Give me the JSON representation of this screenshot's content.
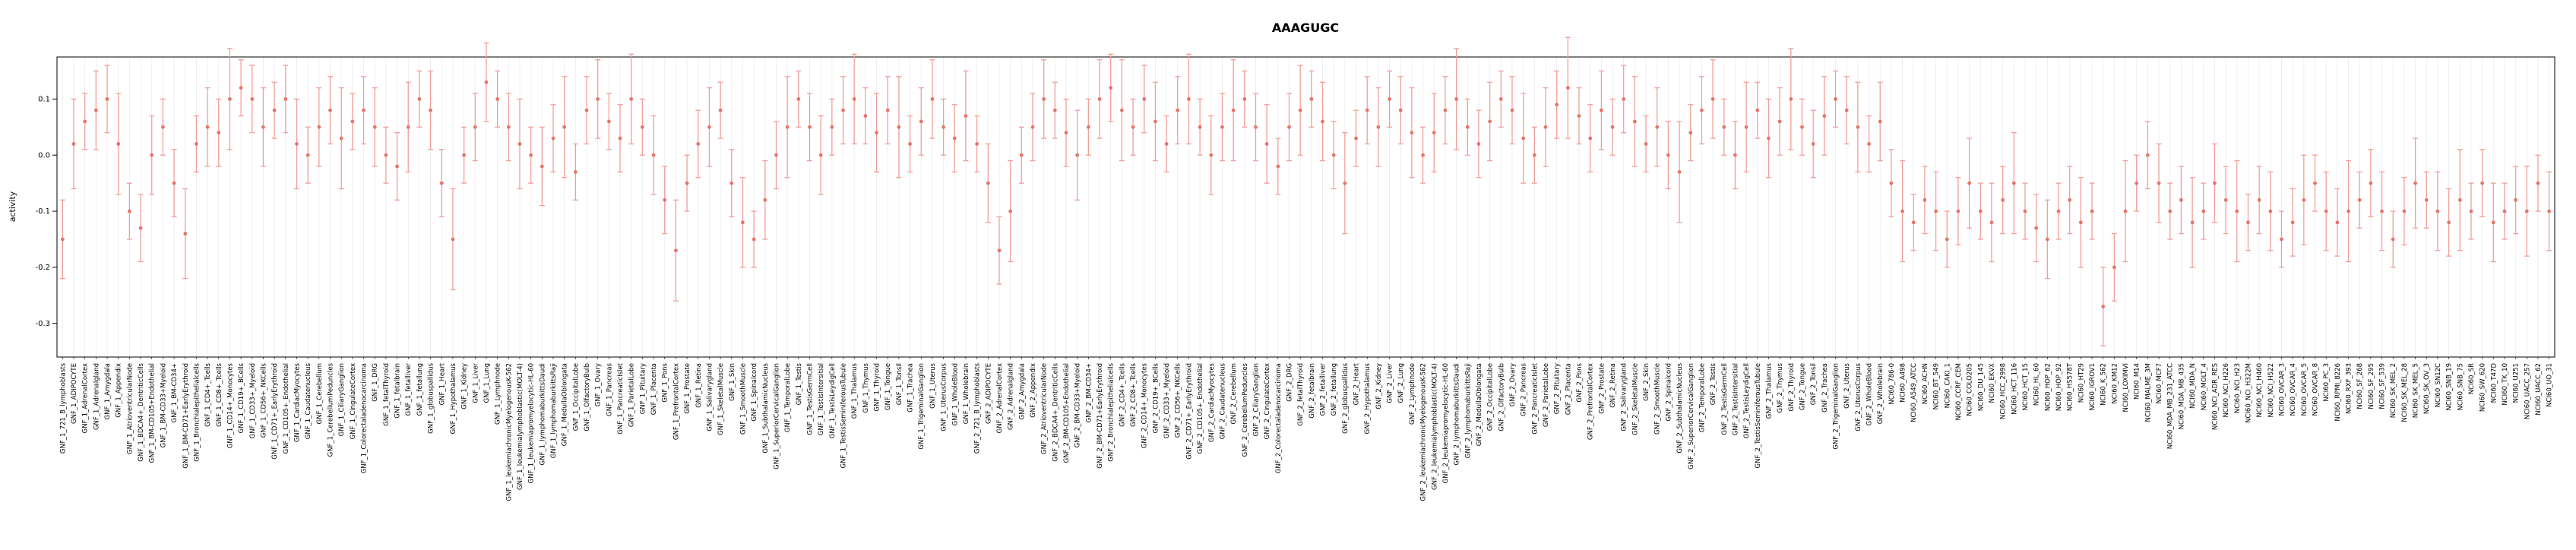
{
  "chart_data": {
    "type": "scatter",
    "title": "AAAGUGC",
    "xlabel": "",
    "ylabel": "activity",
    "ylim": [
      -0.36,
      0.175
    ],
    "yticks": [
      0.1,
      0.0,
      -0.1,
      -0.2,
      -0.3
    ],
    "ytick_labels": [
      "0.1",
      "0.0",
      "-0.1",
      "-0.2",
      "-0.3"
    ],
    "grid": "vertical-only",
    "legend": "none",
    "error_bars": true,
    "point_color": "#e4756a",
    "error_color": "#f09e97",
    "grid_color": "#ebebeb",
    "box_color": "#000000",
    "groups": [
      {
        "prefix": "GNF_1_",
        "source": "tissue_names"
      },
      {
        "prefix": "GNF_2_",
        "source": "tissue_names"
      },
      {
        "prefix": "NCI60_",
        "source": "cell_line_names"
      }
    ],
    "tissue_names": [
      "721_B_lymphoblasts",
      "ADIPOCYTE",
      "AdrenalCortex",
      "Adrenalgland",
      "Amygdala",
      "Appendix",
      "AtrioventricularNode",
      "BDCA4+_DentriticCells",
      "BM-CD105+Endothelial",
      "BM-CD33+Myeloid",
      "BM-CD34+",
      "BM-CD71+EarlyErythroid",
      "Bronchialepithelialcells",
      "CD4+_Tcells",
      "CD8+_Tcells",
      "CD14+_Monocytes",
      "CD19+_BCells",
      "CD33+_Myeloid",
      "CD56+_NKCells",
      "CD71+_EarlyErythroid",
      "CD105+_Endothelial",
      "CardiacMyocytes",
      "Caudatenucleus",
      "Cerebellum",
      "CerebellumPeduncles",
      "CiliaryGanglion",
      "CingulateCortex",
      "Colorectaladenocarcinoma",
      "DRG",
      "fetalThyroid",
      "fetalbrain",
      "fetalliver",
      "fetallung",
      "globuspallidus",
      "Heart",
      "Hypothalamus",
      "Kidney",
      "Liver",
      "Lung",
      "Lymphnode",
      "leukemiachronicMyelogenousK-562",
      "leukemialymphoblastic(MOLT-4)",
      "leukemiapromyelocytic-HL-60",
      "lymphomaburkittsDaudi",
      "lymphomaburkittsRaji",
      "MedullaOblongata",
      "OccipitalLobe",
      "OlfactoryBulb",
      "Ovary",
      "Pancreas",
      "PancreaticIslet",
      "ParietalLobe",
      "Pituitary",
      "Placenta",
      "Pons",
      "PrefrontalCortex",
      "Prostate",
      "Retina",
      "Salivarygland",
      "SkeletalMuscle",
      "Skin",
      "SmoothMuscle",
      "Spinalcord",
      "SubthalamicNucleus",
      "SuperiorCervicalGanglion",
      "TemporalLobe",
      "Testis",
      "TestisGermCell",
      "TestisIntersitial",
      "TestisLeydigCell",
      "TestisSeminiferousTubule",
      "Thalamus",
      "Thymus",
      "Thyroid",
      "Tongue",
      "Tonsil",
      "Trachea",
      "TrigeminalGanglion",
      "Uterus",
      "UterusCorpus",
      "WholeBlood",
      "Wholebrain"
    ],
    "cell_line_names": [
      "786-0",
      "A498",
      "A549_ATCC",
      "ACHN",
      "BT_549",
      "CAKI_1",
      "CCRF_CEM",
      "COLO205",
      "DU_145",
      "EKVX",
      "HCC_2998",
      "HCT_116",
      "HCT_15",
      "HL_60",
      "HOP_62",
      "HOP_92",
      "HS578T",
      "HT29",
      "IGROV1",
      "K_562",
      "KM12",
      "LOXIMVI",
      "M14",
      "MALME_3M",
      "MCF7",
      "MDA_MB_231_ATCC",
      "MDA_MB_435",
      "MDA_N",
      "MOLT_4",
      "NCI_ADR_RES",
      "NCI_H226",
      "NCI_H23",
      "NCI_H322M",
      "NCI_H460",
      "NCI_H522",
      "OVCAR_3",
      "OVCAR_4",
      "OVCAR_5",
      "OVCAR_8",
      "PC_3",
      "RPMI_8226",
      "RXF_393",
      "SF_268",
      "SF_295",
      "SF_539",
      "SK_MEL_2",
      "SK_MEL_28",
      "SK_MEL_5",
      "SK_OV_3",
      "SN12C",
      "SNB_19",
      "SNB_75",
      "SR",
      "SW_620",
      "T47D",
      "TK_10",
      "U251",
      "UACC_257",
      "UACC_62",
      "UO_31"
    ],
    "values": [
      -0.15,
      0.02,
      0.06,
      0.08,
      0.1,
      0.02,
      -0.1,
      -0.13,
      0.0,
      0.05,
      -0.05,
      -0.14,
      0.02,
      0.05,
      0.04,
      0.1,
      0.12,
      0.1,
      0.05,
      0.08,
      0.1,
      0.02,
      0.0,
      0.05,
      0.08,
      0.03,
      0.06,
      0.08,
      0.05,
      0.0,
      -0.02,
      0.05,
      0.1,
      0.08,
      -0.05,
      -0.15,
      0.0,
      0.05,
      0.13,
      0.1,
      0.05,
      0.02,
      0.0,
      -0.02,
      0.03,
      0.05,
      -0.03,
      0.08,
      0.1,
      0.06,
      0.03,
      0.1,
      0.05,
      0.0,
      -0.08,
      -0.17,
      -0.05,
      0.02,
      0.05,
      0.08,
      -0.05,
      -0.12,
      -0.15,
      -0.08,
      0.0,
      0.05,
      0.1,
      0.05,
      0.0,
      0.05,
      0.08,
      0.1,
      0.07,
      0.04,
      0.08,
      0.05,
      0.02,
      0.06,
      0.1,
      0.05,
      0.03,
      0.07,
      0.02,
      -0.05,
      -0.17,
      -0.1,
      0.0,
      0.05,
      0.1,
      0.08,
      0.04,
      0.0,
      0.05,
      0.1,
      0.12,
      0.08,
      0.05,
      0.1,
      0.06,
      0.02,
      0.08,
      0.1,
      0.05,
      0.0,
      0.05,
      0.08,
      0.1,
      0.05,
      0.02,
      -0.02,
      0.05,
      0.08,
      0.1,
      0.06,
      0.0,
      -0.05,
      0.03,
      0.08,
      0.05,
      0.1,
      0.08,
      0.04,
      0.0,
      0.04,
      0.08,
      0.1,
      0.05,
      0.02,
      0.06,
      0.1,
      0.08,
      0.03,
      0.0,
      0.05,
      0.09,
      0.12,
      0.07,
      0.03,
      0.08,
      0.05,
      0.1,
      0.06,
      0.02,
      0.05,
      0.0,
      -0.03,
      0.04,
      0.08,
      0.1,
      0.05,
      0.0,
      0.05,
      0.08,
      0.03,
      0.06,
      0.1,
      0.05,
      0.02,
      0.07,
      0.1,
      0.08,
      0.05,
      0.02,
      0.06,
      -0.05,
      -0.1,
      -0.12,
      -0.08,
      -0.1,
      -0.15,
      -0.1,
      -0.05,
      -0.1,
      -0.12,
      -0.08,
      -0.05,
      -0.1,
      -0.13,
      -0.15,
      -0.1,
      -0.08,
      -0.12,
      -0.1,
      -0.27,
      -0.2,
      -0.1,
      -0.05,
      0.0,
      -0.05,
      -0.1,
      -0.08,
      -0.12,
      -0.1,
      -0.05,
      -0.08,
      -0.1,
      -0.12,
      -0.08,
      -0.1,
      -0.15,
      -0.12,
      -0.08,
      -0.05,
      -0.1,
      -0.12,
      -0.1,
      -0.08,
      -0.05,
      -0.1,
      -0.15,
      -0.1,
      -0.05,
      -0.08,
      -0.1,
      -0.12,
      -0.08,
      -0.1,
      -0.05,
      -0.12,
      -0.1,
      -0.08,
      -0.1,
      -0.05,
      -0.1
    ],
    "errors": [
      0.07,
      0.08,
      0.05,
      0.07,
      0.06,
      0.09,
      0.05,
      0.06,
      0.07,
      0.05,
      0.06,
      0.08,
      0.05,
      0.07,
      0.06,
      0.09,
      0.05,
      0.06,
      0.07,
      0.05,
      0.06,
      0.08,
      0.05,
      0.07,
      0.06,
      0.09,
      0.05,
      0.06,
      0.07,
      0.05,
      0.06,
      0.08,
      0.05,
      0.07,
      0.06,
      0.09,
      0.05,
      0.06,
      0.07,
      0.05,
      0.06,
      0.08,
      0.05,
      0.07,
      0.06,
      0.09,
      0.05,
      0.06,
      0.07,
      0.05,
      0.06,
      0.08,
      0.05,
      0.07,
      0.06,
      0.09,
      0.05,
      0.06,
      0.07,
      0.05,
      0.06,
      0.08,
      0.05,
      0.07,
      0.06,
      0.09,
      0.05,
      0.06,
      0.07,
      0.05,
      0.06,
      0.08,
      0.05,
      0.07,
      0.06,
      0.09,
      0.05,
      0.06,
      0.07,
      0.05,
      0.06,
      0.08,
      0.05,
      0.07,
      0.06,
      0.09,
      0.05,
      0.06,
      0.07,
      0.05,
      0.06,
      0.08,
      0.05,
      0.07,
      0.06,
      0.09,
      0.05,
      0.06,
      0.07,
      0.05,
      0.06,
      0.08,
      0.05,
      0.07,
      0.06,
      0.09,
      0.05,
      0.06,
      0.07,
      0.05,
      0.06,
      0.08,
      0.05,
      0.07,
      0.06,
      0.09,
      0.05,
      0.06,
      0.07,
      0.05,
      0.06,
      0.08,
      0.05,
      0.07,
      0.06,
      0.09,
      0.05,
      0.06,
      0.07,
      0.05,
      0.06,
      0.08,
      0.05,
      0.07,
      0.06,
      0.09,
      0.05,
      0.06,
      0.07,
      0.05,
      0.06,
      0.08,
      0.05,
      0.07,
      0.06,
      0.09,
      0.05,
      0.06,
      0.07,
      0.05,
      0.06,
      0.08,
      0.05,
      0.07,
      0.06,
      0.09,
      0.05,
      0.06,
      0.07,
      0.05,
      0.06,
      0.08,
      0.05,
      0.07,
      0.06,
      0.09,
      0.05,
      0.06,
      0.07,
      0.05,
      0.06,
      0.08,
      0.05,
      0.07,
      0.06,
      0.09,
      0.05,
      0.06,
      0.07,
      0.05,
      0.06,
      0.08,
      0.05,
      0.07,
      0.06,
      0.09,
      0.05,
      0.06,
      0.07,
      0.05,
      0.06,
      0.08,
      0.05,
      0.07,
      0.06,
      0.09,
      0.05,
      0.06,
      0.07,
      0.05,
      0.06,
      0.08,
      0.05,
      0.07,
      0.06,
      0.09,
      0.05,
      0.06,
      0.07,
      0.05,
      0.06,
      0.08,
      0.05,
      0.07,
      0.06,
      0.09,
      0.05,
      0.06,
      0.07,
      0.05,
      0.06,
      0.08,
      0.05,
      0.07
    ]
  }
}
